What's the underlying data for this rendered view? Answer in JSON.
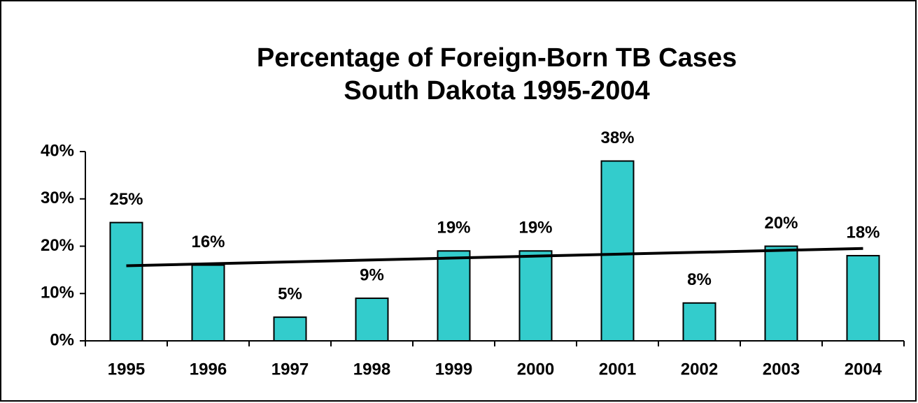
{
  "chart_data": {
    "type": "bar",
    "title": [
      "Percentage of Foreign-Born TB Cases",
      "South Dakota 1995-2004"
    ],
    "categories": [
      "1995",
      "1996",
      "1997",
      "1998",
      "1999",
      "2000",
      "2001",
      "2002",
      "2003",
      "2004"
    ],
    "values": [
      25,
      16,
      5,
      9,
      19,
      19,
      38,
      8,
      20,
      18
    ],
    "value_labels": [
      "25%",
      "16%",
      "5%",
      "9%",
      "19%",
      "19%",
      "38%",
      "8%",
      "20%",
      "18%"
    ],
    "color": "#33cccc",
    "ylim": [
      0,
      40
    ],
    "yticks": [
      {
        "value": 0,
        "label": "0%"
      },
      {
        "value": 10,
        "label": "10%"
      },
      {
        "value": 20,
        "label": "20%"
      },
      {
        "value": 30,
        "label": "30%"
      },
      {
        "value": 40,
        "label": "40%"
      }
    ],
    "trendline": "linear",
    "grid": false
  }
}
